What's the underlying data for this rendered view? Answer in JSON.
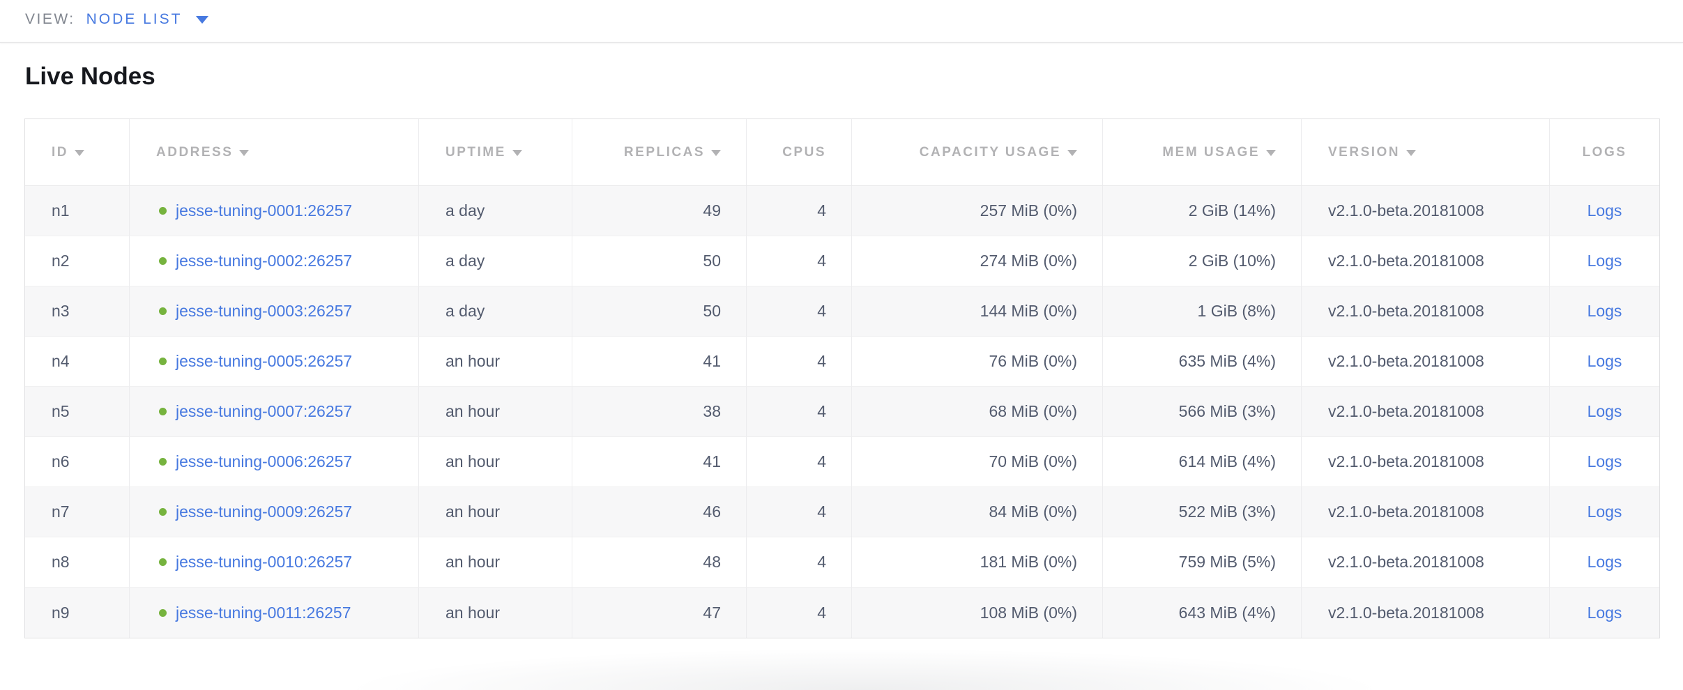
{
  "view_bar": {
    "label": "VIEW:",
    "selected": "NODE LIST"
  },
  "page": {
    "title": "Live Nodes"
  },
  "table": {
    "columns": [
      {
        "key": "id",
        "label": "ID",
        "sortable": true,
        "align": "left"
      },
      {
        "key": "address",
        "label": "ADDRESS",
        "sortable": true,
        "align": "left"
      },
      {
        "key": "uptime",
        "label": "UPTIME",
        "sortable": true,
        "align": "left"
      },
      {
        "key": "replicas",
        "label": "REPLICAS",
        "sortable": true,
        "align": "right"
      },
      {
        "key": "cpus",
        "label": "CPUS",
        "sortable": false,
        "align": "right"
      },
      {
        "key": "capacity",
        "label": "CAPACITY USAGE",
        "sortable": true,
        "align": "right"
      },
      {
        "key": "mem",
        "label": "MEM USAGE",
        "sortable": true,
        "align": "right"
      },
      {
        "key": "version",
        "label": "VERSION",
        "sortable": true,
        "align": "left"
      },
      {
        "key": "logs",
        "label": "LOGS",
        "sortable": false,
        "align": "center"
      }
    ],
    "rows": [
      {
        "id": "n1",
        "address": "jesse-tuning-0001:26257",
        "status": "healthy",
        "uptime": "a day",
        "replicas": "49",
        "cpus": "4",
        "capacity": "257 MiB (0%)",
        "mem": "2 GiB (14%)",
        "version": "v2.1.0-beta.20181008",
        "logs": "Logs"
      },
      {
        "id": "n2",
        "address": "jesse-tuning-0002:26257",
        "status": "healthy",
        "uptime": "a day",
        "replicas": "50",
        "cpus": "4",
        "capacity": "274 MiB (0%)",
        "mem": "2 GiB (10%)",
        "version": "v2.1.0-beta.20181008",
        "logs": "Logs"
      },
      {
        "id": "n3",
        "address": "jesse-tuning-0003:26257",
        "status": "healthy",
        "uptime": "a day",
        "replicas": "50",
        "cpus": "4",
        "capacity": "144 MiB (0%)",
        "mem": "1 GiB (8%)",
        "version": "v2.1.0-beta.20181008",
        "logs": "Logs"
      },
      {
        "id": "n4",
        "address": "jesse-tuning-0005:26257",
        "status": "healthy",
        "uptime": "an hour",
        "replicas": "41",
        "cpus": "4",
        "capacity": "76 MiB (0%)",
        "mem": "635 MiB (4%)",
        "version": "v2.1.0-beta.20181008",
        "logs": "Logs"
      },
      {
        "id": "n5",
        "address": "jesse-tuning-0007:26257",
        "status": "healthy",
        "uptime": "an hour",
        "replicas": "38",
        "cpus": "4",
        "capacity": "68 MiB (0%)",
        "mem": "566 MiB (3%)",
        "version": "v2.1.0-beta.20181008",
        "logs": "Logs"
      },
      {
        "id": "n6",
        "address": "jesse-tuning-0006:26257",
        "status": "healthy",
        "uptime": "an hour",
        "replicas": "41",
        "cpus": "4",
        "capacity": "70 MiB (0%)",
        "mem": "614 MiB (4%)",
        "version": "v2.1.0-beta.20181008",
        "logs": "Logs"
      },
      {
        "id": "n7",
        "address": "jesse-tuning-0009:26257",
        "status": "healthy",
        "uptime": "an hour",
        "replicas": "46",
        "cpus": "4",
        "capacity": "84 MiB (0%)",
        "mem": "522 MiB (3%)",
        "version": "v2.1.0-beta.20181008",
        "logs": "Logs"
      },
      {
        "id": "n8",
        "address": "jesse-tuning-0010:26257",
        "status": "healthy",
        "uptime": "an hour",
        "replicas": "48",
        "cpus": "4",
        "capacity": "181 MiB (0%)",
        "mem": "759 MiB (5%)",
        "version": "v2.1.0-beta.20181008",
        "logs": "Logs"
      },
      {
        "id": "n9",
        "address": "jesse-tuning-0011:26257",
        "status": "healthy",
        "uptime": "an hour",
        "replicas": "47",
        "cpus": "4",
        "capacity": "108 MiB (0%)",
        "mem": "643 MiB (4%)",
        "version": "v2.1.0-beta.20181008",
        "logs": "Logs"
      }
    ]
  },
  "colors": {
    "accent_blue": "#4779e0",
    "healthy_dot_green": "#76b33e",
    "header_text_gray": "#b2b2b4",
    "cell_text_slate": "#535b6e",
    "row_alt_bg": "#f7f7f8"
  }
}
